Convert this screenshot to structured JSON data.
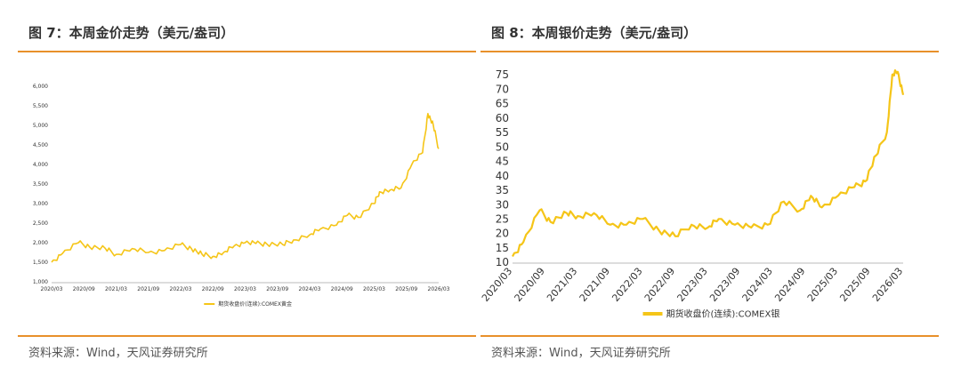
{
  "left_panel": {
    "title": "图 7：本周金价走势（美元/盎司）",
    "source": "资料来源：Wind，天风证券研究所"
  },
  "right_panel": {
    "title": "图 8：本周银价走势（美元/盎司）",
    "source": "资料来源：Wind，天风证券研究所"
  },
  "colors": {
    "line": "#f5c518",
    "rule": "#e8902a"
  },
  "chart_data": [
    {
      "type": "line",
      "title": "",
      "xlabel": "",
      "ylabel": "",
      "grid": false,
      "legend_position": "bottom",
      "x_tick_labels": [
        "2020/03",
        "2020/09",
        "2021/03",
        "2021/09",
        "2022/03",
        "2022/09",
        "2023/03",
        "2023/09",
        "2024/03",
        "2024/09",
        "2025/03",
        "2025/09",
        "2026/03"
      ],
      "y_tick_labels": [
        "1,000",
        "1,500",
        "2,000",
        "2,500",
        "3,000",
        "3,500",
        "4,000",
        "4,500",
        "5,000",
        "5,500",
        "6,000"
      ],
      "ylim": [
        1000,
        6000
      ],
      "xlim": [
        "2020/03",
        "2026/03"
      ],
      "series": [
        {
          "name": "期货收盘价(连续):COMEX黄金",
          "x": [
            "2020/03",
            "2020/05",
            "2020/08",
            "2020/10",
            "2021/01",
            "2021/03",
            "2021/06",
            "2021/09",
            "2021/12",
            "2022/03",
            "2022/05",
            "2022/07",
            "2022/09",
            "2022/11",
            "2023/01",
            "2023/03",
            "2023/05",
            "2023/07",
            "2023/10",
            "2023/12",
            "2024/03",
            "2024/05",
            "2024/08",
            "2024/10",
            "2024/12",
            "2025/03",
            "2025/04",
            "2025/06",
            "2025/08",
            "2025/10",
            "2025/12",
            "2026/01",
            "2026/02",
            "2026/03"
          ],
          "values": [
            1500,
            1720,
            2000,
            1900,
            1850,
            1700,
            1850,
            1750,
            1800,
            1950,
            1850,
            1700,
            1650,
            1750,
            1920,
            2000,
            1980,
            1970,
            1950,
            2070,
            2200,
            2350,
            2450,
            2700,
            2650,
            3000,
            3300,
            3350,
            3400,
            4000,
            4300,
            5300,
            5000,
            4400
          ]
        }
      ]
    },
    {
      "type": "line",
      "title": "",
      "xlabel": "",
      "ylabel": "",
      "grid": false,
      "legend_position": "bottom",
      "x_tick_labels": [
        "2020/03",
        "2020/09",
        "2021/03",
        "2021/09",
        "2022/03",
        "2022/09",
        "2023/03",
        "2023/09",
        "2024/03",
        "2024/09",
        "2025/03",
        "2025/09",
        "2026/03"
      ],
      "y_tick_labels": [
        "10",
        "15",
        "20",
        "25",
        "30",
        "35",
        "40",
        "45",
        "50",
        "55",
        "60",
        "65",
        "70",
        "75"
      ],
      "ylim": [
        10,
        75
      ],
      "xlim": [
        "2020/03",
        "2026/03"
      ],
      "series": [
        {
          "name": "期货收盘价(连续):COMEX银",
          "x": [
            "2020/03",
            "2020/05",
            "2020/08",
            "2020/10",
            "2021/01",
            "2021/03",
            "2021/06",
            "2021/09",
            "2021/12",
            "2022/03",
            "2022/06",
            "2022/09",
            "2022/12",
            "2023/03",
            "2023/05",
            "2023/08",
            "2023/11",
            "2024/02",
            "2024/05",
            "2024/08",
            "2024/10",
            "2024/12",
            "2025/03",
            "2025/06",
            "2025/08",
            "2025/10",
            "2025/12",
            "2026/01",
            "2026/02",
            "2026/03"
          ],
          "values": [
            12,
            17,
            28,
            24,
            27,
            26,
            27,
            23,
            23,
            25,
            21,
            19,
            23,
            22,
            25,
            23,
            22,
            23,
            31,
            28,
            33,
            29,
            33,
            36,
            38,
            47,
            55,
            75,
            76,
            68
          ]
        }
      ]
    }
  ]
}
